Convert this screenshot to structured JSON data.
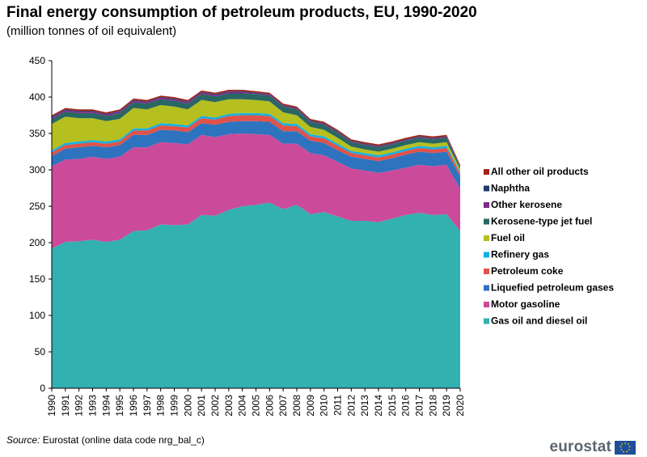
{
  "header": {
    "title": "Final energy consumption of petroleum products, EU, 1990-2020",
    "subtitle": "(million tonnes of oil equivalent)"
  },
  "footer": {
    "source_label": "Source:",
    "source_text": "Eurostat (online data code nrg_bal_c)",
    "logo_text": "eurostat"
  },
  "chart_data": {
    "type": "area",
    "stacked": true,
    "title": "Final energy consumption of petroleum products, EU, 1990-2020",
    "subtitle": "(million tonnes of oil equivalent)",
    "ylim": [
      0,
      450
    ],
    "yticks": [
      0,
      50,
      100,
      150,
      200,
      250,
      300,
      350,
      400,
      450
    ],
    "grid": false,
    "legend_position": "right",
    "x": [
      "1990",
      "1991",
      "1992",
      "1993",
      "1994",
      "1995",
      "1996",
      "1997",
      "1998",
      "1999",
      "2000",
      "2001",
      "2002",
      "2003",
      "2004",
      "2005",
      "2006",
      "2007",
      "2008",
      "2009",
      "2010",
      "2011",
      "2012",
      "2013",
      "2014",
      "2015",
      "2016",
      "2017",
      "2018",
      "2019",
      "2020"
    ],
    "series": [
      {
        "name": "Gas oil and diesel oil",
        "color": "#33b0b0",
        "values": [
          192,
          201,
          202,
          204,
          201,
          204,
          216,
          217,
          225,
          224,
          225,
          238,
          237,
          245,
          250,
          252,
          255,
          246,
          252,
          239,
          242,
          236,
          230,
          230,
          228,
          233,
          238,
          241,
          238,
          239,
          216
        ]
      },
      {
        "name": "Motor gasoline",
        "color": "#cc4a9a",
        "values": [
          113,
          113,
          113,
          114,
          114,
          114,
          115,
          114,
          113,
          113,
          110,
          110,
          108,
          104,
          100,
          97,
          93,
          90,
          84,
          84,
          78,
          75,
          72,
          69,
          68,
          66,
          65,
          66,
          67,
          68,
          58
        ]
      },
      {
        "name": "Liquefied petroleum gases",
        "color": "#2e73be",
        "values": [
          14,
          15,
          16,
          15,
          16,
          16,
          17,
          17,
          17,
          17,
          17,
          16,
          17,
          17,
          17,
          18,
          18,
          17,
          17,
          17,
          17,
          16,
          16,
          16,
          16,
          17,
          18,
          18,
          18,
          18,
          17
        ]
      },
      {
        "name": "Petroleum coke",
        "color": "#e0524a",
        "values": [
          5,
          5,
          5,
          5,
          5,
          5,
          6,
          6,
          6,
          6,
          6,
          7,
          7,
          8,
          8,
          8,
          8,
          8,
          7,
          6,
          6,
          6,
          5,
          5,
          5,
          5,
          5,
          5,
          5,
          5,
          4
        ]
      },
      {
        "name": "Refinery gas",
        "color": "#15b0e0",
        "values": [
          3,
          3,
          3,
          3,
          3,
          3,
          3,
          3,
          3,
          3,
          3,
          3,
          3,
          3,
          3,
          3,
          3,
          3,
          3,
          3,
          3,
          3,
          3,
          3,
          3,
          3,
          3,
          3,
          3,
          3,
          2
        ]
      },
      {
        "name": "Fuel oil",
        "color": "#b5bf1f",
        "values": [
          36,
          36,
          32,
          30,
          28,
          28,
          28,
          26,
          25,
          24,
          22,
          22,
          21,
          20,
          19,
          18,
          17,
          15,
          12,
          10,
          9,
          8,
          6,
          5,
          5,
          5,
          5,
          5,
          5,
          5,
          4
        ]
      },
      {
        "name": "Kerosene-type jet fuel",
        "color": "#286763",
        "values": [
          7,
          7,
          7,
          7,
          7,
          8,
          8,
          8,
          8,
          8,
          8,
          8,
          8,
          8,
          8,
          8,
          8,
          8,
          8,
          7,
          7,
          7,
          6,
          6,
          6,
          6,
          6,
          6,
          6,
          6,
          2
        ]
      },
      {
        "name": "Other kerosene",
        "color": "#7d2a8a",
        "values": [
          2,
          2,
          2,
          2,
          2,
          2,
          2,
          2,
          2,
          2,
          2,
          2,
          2,
          2,
          2,
          1,
          1,
          1,
          1,
          1,
          1,
          1,
          1,
          1,
          1,
          1,
          1,
          1,
          1,
          1,
          1
        ]
      },
      {
        "name": "Naphtha",
        "color": "#1f3b6b",
        "values": [
          1,
          1,
          1,
          1,
          1,
          1,
          1,
          1,
          1,
          1,
          1,
          1,
          1,
          1,
          1,
          1,
          1,
          1,
          1,
          1,
          1,
          1,
          1,
          1,
          1,
          1,
          1,
          1,
          1,
          1,
          1
        ]
      },
      {
        "name": "All other oil products",
        "color": "#a3241b",
        "values": [
          2,
          2,
          2,
          2,
          2,
          2,
          2,
          2,
          2,
          2,
          2,
          2,
          2,
          2,
          2,
          2,
          2,
          2,
          2,
          2,
          2,
          2,
          2,
          2,
          2,
          2,
          2,
          2,
          2,
          2,
          2
        ]
      }
    ]
  }
}
